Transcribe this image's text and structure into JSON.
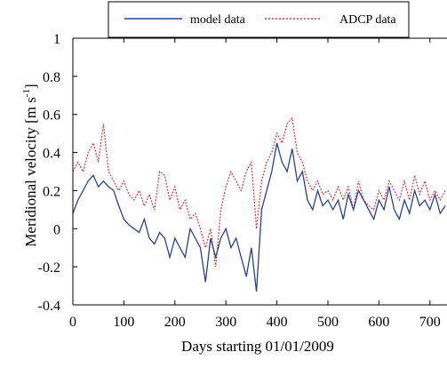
{
  "chart_data": {
    "type": "line",
    "title": "",
    "xlabel": "Days starting 01/01/2009",
    "ylabel": "Meridional velocity [m s",
    "ylabel_sup": "-1",
    "ylabel_close": "]",
    "xlim": [
      0,
      730
    ],
    "ylim": [
      -0.4,
      1
    ],
    "xticks": [
      0,
      100,
      200,
      300,
      400,
      500,
      600,
      700
    ],
    "yticks": [
      -0.4,
      -0.2,
      0,
      0.2,
      0.4,
      0.6,
      0.8,
      1
    ],
    "xtick_labels": [
      "0",
      "100",
      "200",
      "300",
      "400",
      "500",
      "600",
      "700"
    ],
    "ytick_labels": [
      "-0.4",
      "-0.2",
      "0",
      "0.2",
      "0.4",
      "0.6",
      "0.8",
      "1"
    ],
    "grid": false,
    "legend_position": "top",
    "series": [
      {
        "name": "model data",
        "color": "#2b3f9c",
        "style": "solid",
        "x": [
          0,
          10,
          20,
          30,
          40,
          50,
          60,
          70,
          80,
          90,
          100,
          110,
          120,
          130,
          140,
          150,
          160,
          170,
          180,
          190,
          200,
          210,
          220,
          230,
          240,
          250,
          260,
          270,
          280,
          290,
          300,
          310,
          320,
          330,
          340,
          350,
          360,
          370,
          380,
          390,
          400,
          410,
          420,
          430,
          440,
          450,
          460,
          470,
          480,
          490,
          500,
          510,
          520,
          530,
          540,
          550,
          560,
          570,
          580,
          590,
          600,
          610,
          620,
          630,
          640,
          650,
          660,
          670,
          680,
          690,
          700,
          710,
          720,
          730
        ],
        "y": [
          0.08,
          0.15,
          0.2,
          0.25,
          0.28,
          0.22,
          0.25,
          0.22,
          0.2,
          0.12,
          0.05,
          0.02,
          0.0,
          -0.02,
          0.05,
          -0.05,
          -0.08,
          -0.02,
          -0.05,
          -0.15,
          -0.05,
          -0.1,
          -0.15,
          0.0,
          -0.05,
          -0.1,
          -0.28,
          -0.05,
          -0.15,
          -0.05,
          0.0,
          -0.1,
          -0.05,
          -0.15,
          -0.25,
          -0.1,
          -0.33,
          0.1,
          0.2,
          0.3,
          0.45,
          0.35,
          0.3,
          0.42,
          0.25,
          0.3,
          0.15,
          0.1,
          0.2,
          0.12,
          0.15,
          0.1,
          0.15,
          0.05,
          0.18,
          0.1,
          0.2,
          0.15,
          0.1,
          0.05,
          0.15,
          0.1,
          0.22,
          0.1,
          0.05,
          0.15,
          0.08,
          0.2,
          0.12,
          0.15,
          0.1,
          0.18,
          0.08,
          0.12
        ]
      },
      {
        "name": "ADCP data",
        "color": "#e8343a",
        "style": "dotted",
        "x": [
          0,
          10,
          20,
          30,
          40,
          50,
          60,
          70,
          80,
          90,
          100,
          110,
          120,
          130,
          140,
          150,
          160,
          170,
          180,
          190,
          200,
          210,
          220,
          230,
          240,
          250,
          260,
          270,
          280,
          290,
          300,
          310,
          320,
          330,
          340,
          350,
          360,
          370,
          380,
          390,
          400,
          410,
          420,
          430,
          440,
          450,
          460,
          470,
          480,
          490,
          500,
          510,
          520,
          530,
          540,
          550,
          560,
          570,
          580,
          590,
          600,
          610,
          620,
          630,
          640,
          650,
          660,
          670,
          680,
          690,
          700,
          710,
          720,
          730
        ],
        "y": [
          0.3,
          0.35,
          0.3,
          0.4,
          0.45,
          0.35,
          0.55,
          0.3,
          0.25,
          0.2,
          0.25,
          0.18,
          0.15,
          0.2,
          0.12,
          0.18,
          0.1,
          0.3,
          0.28,
          0.15,
          0.22,
          0.1,
          0.15,
          0.05,
          0.08,
          0.0,
          -0.1,
          0.0,
          -0.2,
          0.1,
          0.22,
          0.3,
          0.25,
          0.2,
          0.3,
          0.35,
          0.0,
          0.25,
          0.35,
          0.4,
          0.5,
          0.45,
          0.55,
          0.58,
          0.4,
          0.35,
          0.25,
          0.2,
          0.25,
          0.18,
          0.2,
          0.15,
          0.22,
          0.15,
          0.22,
          0.1,
          0.25,
          0.15,
          0.12,
          0.1,
          0.2,
          0.15,
          0.25,
          0.2,
          0.15,
          0.25,
          0.15,
          0.28,
          0.18,
          0.25,
          0.15,
          0.2,
          0.15,
          0.2
        ]
      }
    ]
  }
}
